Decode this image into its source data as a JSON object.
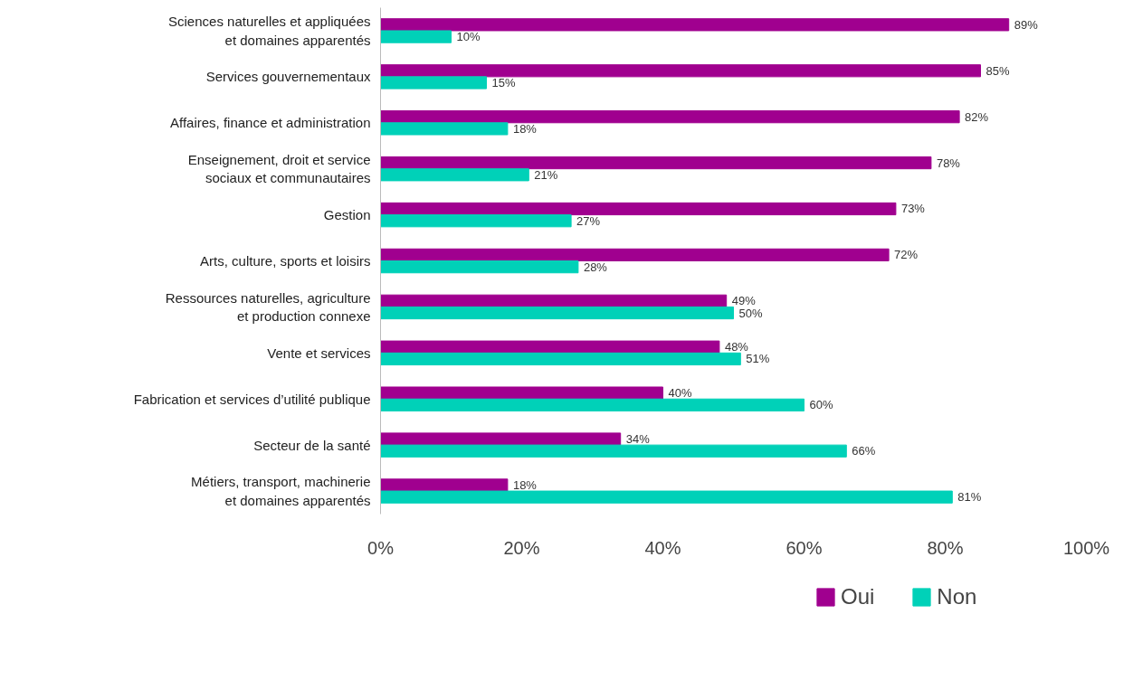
{
  "chart_data": {
    "type": "bar",
    "orientation": "horizontal",
    "categories": [
      "Sciences naturelles et appliquées\net domaines apparentés",
      "Services gouvernementaux",
      "Affaires, finance et administration",
      "Enseignement, droit et service\nsociaux et communautaires",
      "Gestion",
      "Arts, culture, sports et loisirs",
      "Ressources naturelles, agriculture\net production connexe",
      "Vente et services",
      "Fabrication et services d’utilité publique",
      "Secteur de la santé",
      "Métiers, transport, machinerie\net domaines apparentés"
    ],
    "series": [
      {
        "name": "Oui",
        "color": "#a0008f",
        "values": [
          89,
          85,
          82,
          78,
          73,
          72,
          49,
          48,
          40,
          34,
          18
        ],
        "value_labels": [
          "89%",
          "85%",
          "82%",
          "78%",
          "73%",
          "72%",
          "49%",
          "48%",
          "40%",
          "34%",
          "18%"
        ]
      },
      {
        "name": "Non",
        "color": "#00d1b8",
        "values": [
          10,
          15,
          18,
          21,
          27,
          28,
          50,
          51,
          60,
          66,
          81
        ],
        "value_labels": [
          "10%",
          "15%",
          "18%",
          "21%",
          "27%",
          "28%",
          "50%",
          "51%",
          "60%",
          "66%",
          "81%"
        ]
      }
    ],
    "xlim": [
      0,
      100
    ],
    "xticks": [
      {
        "value": 0,
        "label": "0%"
      },
      {
        "value": 20,
        "label": "20%"
      },
      {
        "value": 40,
        "label": "40%"
      },
      {
        "value": 60,
        "label": "60%"
      },
      {
        "value": 80,
        "label": "80%"
      },
      {
        "value": 100,
        "label": "100%"
      }
    ],
    "legend": "bottom",
    "grid": false
  }
}
